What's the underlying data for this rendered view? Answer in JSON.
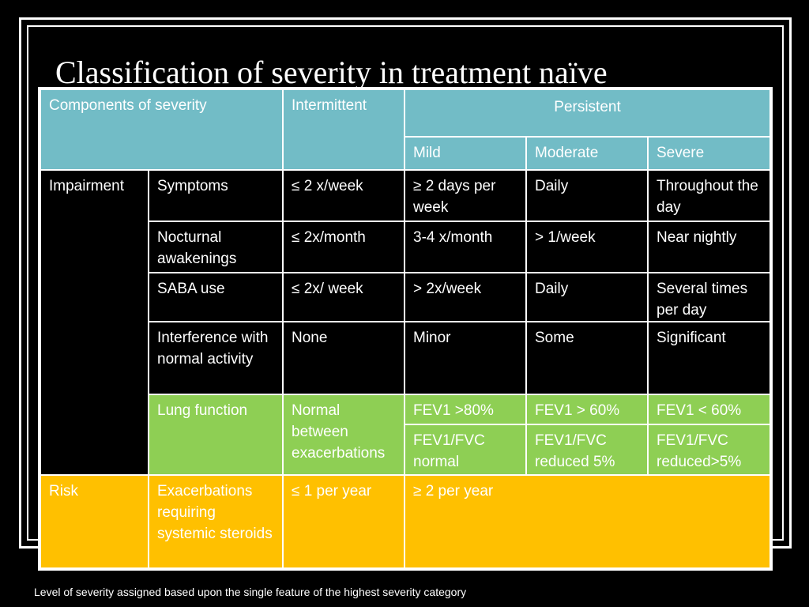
{
  "title": "Classification of severity in treatment naïve",
  "table": {
    "header": {
      "components": "Components of severity",
      "intermittent": "Intermittent",
      "persistent": "Persistent",
      "mild": "Mild",
      "moderate": "Moderate",
      "severe": "Severe"
    },
    "impairment": {
      "label": "Impairment",
      "rows": [
        {
          "name": "Symptoms",
          "intermittent": "≤ 2 x/week",
          "mild": "≥ 2 days per week",
          "moderate": "Daily",
          "severe": "Throughout the day"
        },
        {
          "name": "Nocturnal awakenings",
          "intermittent": "≤ 2x/month",
          "mild": "3-4 x/month",
          "moderate": "> 1/week",
          "severe": "Near nightly"
        },
        {
          "name": "SABA use",
          "intermittent": "≤ 2x/ week",
          "mild": "> 2x/week",
          "moderate": "Daily",
          "severe": "Several times per day"
        },
        {
          "name": "Interference with normal activity",
          "intermittent": "None",
          "mild": "Minor",
          "moderate": "Some",
          "severe": "Significant"
        }
      ],
      "lung_function": {
        "name": "Lung function",
        "intermittent": "Normal between exacerbations",
        "fev1": {
          "mild": "FEV1 >80%",
          "moderate": "FEV1 > 60%",
          "severe": "FEV1 < 60%"
        },
        "fev1_fvc": {
          "mild": "FEV1/FVC normal",
          "moderate": "FEV1/FVC reduced 5%",
          "severe": "FEV1/FVC reduced>5%"
        }
      }
    },
    "risk": {
      "label": "Risk",
      "name": "Exacerbations requiring systemic steroids",
      "intermittent": "≤ 1 per year",
      "persistent": "≥ 2 per year"
    }
  },
  "footnote": "Level of severity assigned based upon the single feature of the highest severity category",
  "colors": {
    "background": "#000000",
    "header": "#72bcc6",
    "lung_function": "#8ecf54",
    "risk": "#ffc000",
    "text": "#ffffff"
  }
}
